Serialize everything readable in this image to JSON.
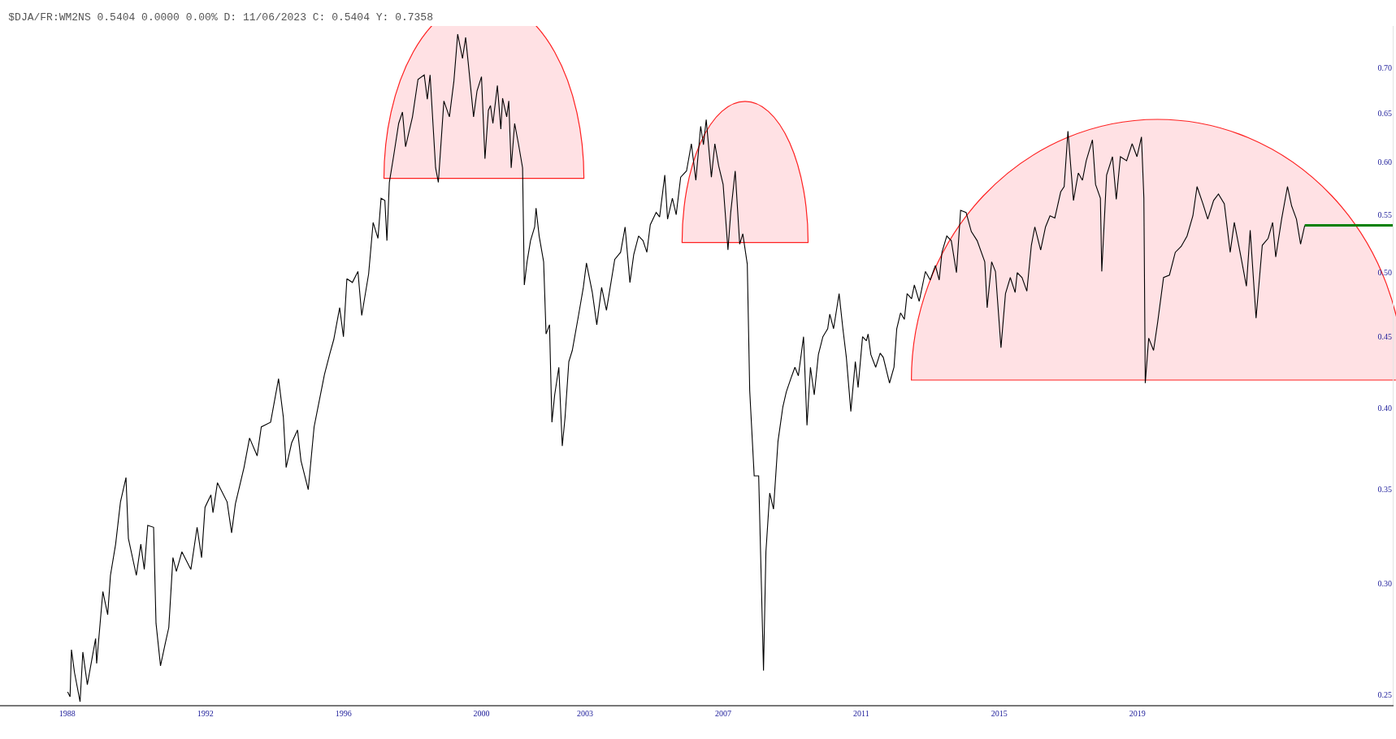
{
  "chart_data": {
    "type": "line",
    "title": "$DJA/FR:WM2NS 0.5404 0.0000 0.00% D: 11/06/2023 C: 0.5404 Y: 0.7358",
    "x": [
      1988.01,
      1988.08,
      1988.12,
      1988.21,
      1988.37,
      1988.45,
      1988.58,
      1988.82,
      1988.85,
      1989.03,
      1989.17,
      1989.25,
      1989.4,
      1989.54,
      1989.7,
      1989.77,
      1990.0,
      1990.13,
      1990.23,
      1990.33,
      1990.5,
      1990.57,
      1990.7,
      1990.84,
      1990.94,
      1991.06,
      1991.16,
      1991.32,
      1991.58,
      1991.76,
      1991.89,
      1991.99,
      1992.16,
      1992.22,
      1992.35,
      1992.63,
      1992.76,
      1992.87,
      1993.12,
      1993.28,
      1993.5,
      1993.62,
      1993.89,
      1994.12,
      1994.26,
      1994.34,
      1994.5,
      1994.67,
      1994.77,
      1994.98,
      1995.15,
      1995.45,
      1995.61,
      1995.72,
      1995.89,
      1996.0,
      1996.1,
      1996.26,
      1996.42,
      1996.53,
      1996.73,
      1996.86,
      1997.0,
      1997.09,
      1997.2,
      1997.26,
      1997.33,
      1997.46,
      1997.6,
      1997.71,
      1997.8,
      1998.0,
      1998.16,
      1998.34,
      1998.43,
      1998.51,
      1998.67,
      1998.75,
      1998.91,
      1999.07,
      1999.2,
      1999.31,
      1999.45,
      1999.54,
      1999.61,
      1999.77,
      1999.87,
      2000.0,
      2000.1,
      2000.2,
      2000.26,
      2000.33,
      2000.46,
      2000.56,
      2000.61,
      2000.73,
      2000.79,
      2000.86,
      2000.96,
      2001.07,
      2001.19,
      2001.24,
      2001.32,
      2001.42,
      2001.54,
      2001.58,
      2001.67,
      2001.8,
      2001.87,
      2001.97,
      2002.04,
      2002.12,
      2002.24,
      2002.34,
      2002.42,
      2002.53,
      2002.63,
      2002.81,
      2002.95,
      2003.04,
      2003.21,
      2003.34,
      2003.48,
      2003.62,
      2003.86,
      2004.03,
      2004.16,
      2004.3,
      2004.41,
      2004.55,
      2004.68,
      2004.79,
      2004.89,
      2005.06,
      2005.16,
      2005.31,
      2005.39,
      2005.53,
      2005.64,
      2005.77,
      2005.94,
      2006.08,
      2006.21,
      2006.35,
      2006.43,
      2006.51,
      2006.66,
      2006.76,
      2006.87,
      2007.0,
      2007.14,
      2007.22,
      2007.35,
      2007.48,
      2007.57,
      2007.7,
      2007.77,
      2007.9,
      2008.03,
      2008.17,
      2008.24,
      2008.35,
      2008.46,
      2008.59,
      2008.73,
      2008.83,
      2008.96,
      2009.08,
      2009.18,
      2009.33,
      2009.43,
      2009.53,
      2009.64,
      2009.76,
      2009.89,
      2010.03,
      2010.09,
      2010.2,
      2010.36,
      2010.47,
      2010.57,
      2010.7,
      2010.83,
      2010.91,
      2011.04,
      2011.15,
      2011.2,
      2011.28,
      2011.42,
      2011.55,
      2011.64,
      2011.82,
      2011.95,
      2012.03,
      2012.14,
      2012.25,
      2012.33,
      2012.46,
      2012.54,
      2012.68,
      2012.86,
      2013.0,
      2013.15,
      2013.26,
      2013.34,
      2013.48,
      2013.61,
      2013.76,
      2013.88,
      2014.04,
      2014.19,
      2014.36,
      2014.58,
      2014.65,
      2014.78,
      2014.89,
      2015.05,
      2015.18,
      2015.32,
      2015.46,
      2015.52,
      2015.66,
      2015.8,
      2015.93,
      2016.03,
      2016.2,
      2016.34,
      2016.47,
      2016.61,
      2016.78,
      2016.88,
      2016.99,
      2017.15,
      2017.29,
      2017.41,
      2017.52,
      2017.7,
      2017.79,
      2017.93,
      2017.97,
      2018.11,
      2018.28,
      2018.39,
      2018.51,
      2018.69,
      2018.85,
      2018.99,
      2019.12,
      2019.19,
      2019.23,
      2019.33,
      2019.47,
      2019.59,
      2019.76,
      2019.93,
      2020.1,
      2020.27,
      2020.44,
      2020.61,
      2020.73,
      2020.9,
      2021.04,
      2021.21,
      2021.35,
      2021.52,
      2021.69,
      2021.81,
      2021.99,
      2022.16,
      2022.27,
      2022.44,
      2022.62,
      2022.79,
      2022.92,
      2023.01,
      2023.18,
      2023.35,
      2023.47,
      2023.61,
      2023.73,
      2023.85
    ],
    "series": [
      {
        "color": "#000000",
        "values": [
          0.251,
          0.249,
          0.269,
          0.259,
          0.247,
          0.268,
          0.254,
          0.274,
          0.263,
          0.296,
          0.285,
          0.304,
          0.32,
          0.343,
          0.357,
          0.323,
          0.304,
          0.32,
          0.307,
          0.33,
          0.329,
          0.281,
          0.262,
          0.272,
          0.279,
          0.313,
          0.306,
          0.316,
          0.307,
          0.329,
          0.313,
          0.34,
          0.347,
          0.337,
          0.354,
          0.343,
          0.326,
          0.342,
          0.363,
          0.381,
          0.37,
          0.388,
          0.391,
          0.42,
          0.394,
          0.363,
          0.378,
          0.386,
          0.367,
          0.35,
          0.388,
          0.423,
          0.438,
          0.448,
          0.472,
          0.45,
          0.495,
          0.492,
          0.501,
          0.466,
          0.499,
          0.543,
          0.529,
          0.565,
          0.563,
          0.527,
          0.58,
          0.607,
          0.639,
          0.651,
          0.615,
          0.646,
          0.687,
          0.692,
          0.665,
          0.692,
          0.594,
          0.58,
          0.663,
          0.646,
          0.685,
          0.74,
          0.711,
          0.736,
          0.708,
          0.646,
          0.674,
          0.69,
          0.603,
          0.653,
          0.658,
          0.639,
          0.68,
          0.633,
          0.666,
          0.646,
          0.663,
          0.594,
          0.639,
          0.618,
          0.594,
          0.49,
          0.509,
          0.527,
          0.539,
          0.556,
          0.531,
          0.509,
          0.452,
          0.459,
          0.391,
          0.409,
          0.428,
          0.376,
          0.394,
          0.432,
          0.44,
          0.466,
          0.488,
          0.508,
          0.484,
          0.459,
          0.488,
          0.47,
          0.511,
          0.517,
          0.539,
          0.492,
          0.515,
          0.531,
          0.527,
          0.517,
          0.541,
          0.552,
          0.548,
          0.587,
          0.546,
          0.565,
          0.55,
          0.585,
          0.591,
          0.618,
          0.582,
          0.636,
          0.617,
          0.643,
          0.585,
          0.618,
          0.596,
          0.578,
          0.519,
          0.552,
          0.591,
          0.524,
          0.533,
          0.507,
          0.412,
          0.358,
          0.358,
          0.26,
          0.316,
          0.348,
          0.339,
          0.379,
          0.401,
          0.411,
          0.42,
          0.428,
          0.422,
          0.45,
          0.389,
          0.428,
          0.409,
          0.437,
          0.45,
          0.456,
          0.467,
          0.456,
          0.483,
          0.456,
          0.435,
          0.398,
          0.432,
          0.414,
          0.45,
          0.447,
          0.452,
          0.437,
          0.428,
          0.438,
          0.435,
          0.417,
          0.428,
          0.456,
          0.468,
          0.463,
          0.483,
          0.479,
          0.49,
          0.477,
          0.501,
          0.494,
          0.506,
          0.494,
          0.517,
          0.531,
          0.527,
          0.5,
          0.554,
          0.552,
          0.535,
          0.527,
          0.509,
          0.472,
          0.509,
          0.501,
          0.442,
          0.483,
          0.496,
          0.484,
          0.5,
          0.496,
          0.485,
          0.523,
          0.539,
          0.519,
          0.539,
          0.549,
          0.547,
          0.571,
          0.576,
          0.631,
          0.563,
          0.589,
          0.582,
          0.601,
          0.622,
          0.578,
          0.565,
          0.501,
          0.587,
          0.605,
          0.564,
          0.605,
          0.601,
          0.618,
          0.605,
          0.625,
          0.565,
          0.417,
          0.449,
          0.44,
          0.461,
          0.496,
          0.498,
          0.517,
          0.522,
          0.531,
          0.549,
          0.576,
          0.56,
          0.546,
          0.563,
          0.569,
          0.56,
          0.517,
          0.543,
          0.515,
          0.489,
          0.536,
          0.464,
          0.523,
          0.529,
          0.543,
          0.513,
          0.546,
          0.576,
          0.558,
          0.546,
          0.524,
          0.5404
        ]
      },
      {
        "color": "#008000",
        "x": [
          2023.85,
          2026.4
        ],
        "values": [
          0.5404,
          0.5404
        ]
      }
    ],
    "xlim": [
      1986.05,
      2026.4
    ],
    "xticks": [
      1988,
      1992,
      1996,
      2000,
      2003,
      2007,
      2011,
      2015,
      2019
    ],
    "ylim": [
      0.2457,
      0.75
    ],
    "yticks": [
      0.25,
      {
        "value": 0.3,
        "label": "0.30"
      },
      0.35,
      {
        "value": 0.4,
        "label": "0.40"
      },
      0.45,
      {
        "value": 0.5,
        "label": "0.50"
      },
      0.55,
      {
        "value": 0.6,
        "label": "0.60"
      },
      0.65,
      {
        "value": 0.7,
        "label": "0.70"
      }
    ],
    "log": "y",
    "marker": "none",
    "line_style": "solid"
  }
}
